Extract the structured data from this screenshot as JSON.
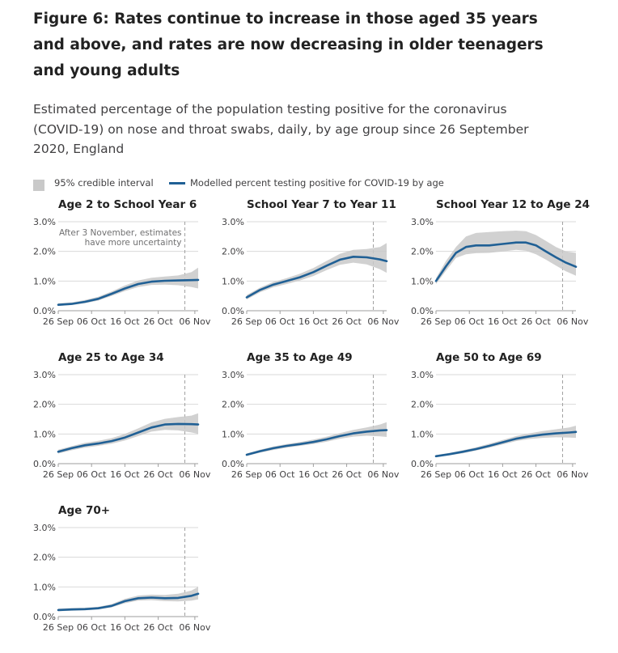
{
  "header": {
    "title": "Figure 6: Rates continue to increase in those aged 35 years and above, and rates are now decreasing in older teenagers and young adults",
    "subtitle": "Estimated percentage of the population testing positive for the coronavirus (COVID-19) on nose and throat swabs, daily, by age group since 26 September 2020, England"
  },
  "legend": {
    "interval_label": "95% credible interval",
    "line_label": "Modelled percent testing positive for COVID-19 by age"
  },
  "colors": {
    "line": "#206095",
    "band": "#c9c9c9",
    "grid": "#d9d9d9",
    "marker": "#a0a0a0"
  },
  "chart_data": [
    {
      "type": "line",
      "title": "Age 2 to School Year 6",
      "xlabel": "",
      "ylabel": "",
      "x_ticks": [
        "26 Sep",
        "06 Oct",
        "16 Oct",
        "26 Oct",
        "06 Nov"
      ],
      "x_tick_days": [
        0,
        10,
        20,
        30,
        41
      ],
      "x_range_days": [
        0,
        42
      ],
      "y_ticks": [
        "0.0%",
        "1.0%",
        "2.0%",
        "3.0%"
      ],
      "ylim": [
        0,
        3
      ],
      "marker_day": 38,
      "annotation": [
        "After 3 November, estimates",
        "have more uncertainty"
      ],
      "series": [
        {
          "x_days": [
            0,
            4,
            8,
            12,
            16,
            20,
            24,
            28,
            32,
            36,
            40,
            42
          ],
          "values": [
            0.2,
            0.23,
            0.3,
            0.4,
            0.57,
            0.75,
            0.9,
            0.98,
            1.01,
            1.02,
            1.03,
            1.04
          ],
          "lower": [
            0.16,
            0.19,
            0.25,
            0.34,
            0.5,
            0.66,
            0.8,
            0.87,
            0.88,
            0.86,
            0.8,
            0.75
          ],
          "upper": [
            0.25,
            0.28,
            0.36,
            0.47,
            0.65,
            0.85,
            1.02,
            1.11,
            1.15,
            1.19,
            1.3,
            1.45
          ]
        }
      ]
    },
    {
      "type": "line",
      "title": "School Year 7 to Year 11",
      "xlabel": "",
      "ylabel": "",
      "x_ticks": [
        "26 Sep",
        "06 Oct",
        "16 Oct",
        "26 Oct",
        "06 Nov"
      ],
      "x_tick_days": [
        0,
        10,
        20,
        30,
        41
      ],
      "x_range_days": [
        0,
        42
      ],
      "y_ticks": [
        "0.0%",
        "1.0%",
        "2.0%",
        "3.0%"
      ],
      "ylim": [
        0,
        3
      ],
      "marker_day": 38,
      "series": [
        {
          "x_days": [
            0,
            4,
            8,
            12,
            16,
            20,
            24,
            28,
            32,
            36,
            40,
            42
          ],
          "values": [
            0.45,
            0.7,
            0.88,
            1.0,
            1.13,
            1.3,
            1.52,
            1.72,
            1.82,
            1.8,
            1.73,
            1.67
          ],
          "lower": [
            0.38,
            0.62,
            0.79,
            0.9,
            1.02,
            1.17,
            1.37,
            1.55,
            1.62,
            1.56,
            1.4,
            1.28
          ],
          "upper": [
            0.53,
            0.78,
            0.97,
            1.1,
            1.25,
            1.44,
            1.68,
            1.92,
            2.05,
            2.08,
            2.15,
            2.28
          ]
        }
      ]
    },
    {
      "type": "line",
      "title": "School Year 12 to Age 24",
      "xlabel": "",
      "ylabel": "",
      "x_ticks": [
        "26 Sep",
        "06 Oct",
        "16 Oct",
        "26 Oct",
        "06 Nov"
      ],
      "x_tick_days": [
        0,
        10,
        20,
        30,
        41
      ],
      "x_range_days": [
        0,
        42
      ],
      "y_ticks": [
        "0.0%",
        "1.0%",
        "2.0%",
        "3.0%"
      ],
      "ylim": [
        0,
        3
      ],
      "marker_day": 38,
      "series": [
        {
          "x_days": [
            0,
            3,
            6,
            9,
            12,
            16,
            20,
            24,
            27,
            30,
            33,
            36,
            39,
            42
          ],
          "values": [
            1.0,
            1.5,
            1.95,
            2.15,
            2.2,
            2.2,
            2.25,
            2.3,
            2.3,
            2.2,
            2.0,
            1.8,
            1.62,
            1.48
          ],
          "lower": [
            0.9,
            1.35,
            1.78,
            1.9,
            1.94,
            1.95,
            2.0,
            2.05,
            2.02,
            1.9,
            1.72,
            1.52,
            1.33,
            1.18
          ],
          "upper": [
            1.1,
            1.68,
            2.15,
            2.5,
            2.62,
            2.65,
            2.68,
            2.7,
            2.68,
            2.55,
            2.35,
            2.15,
            2.0,
            1.95
          ]
        }
      ]
    },
    {
      "type": "line",
      "title": "Age 25 to Age 34",
      "xlabel": "",
      "ylabel": "",
      "x_ticks": [
        "26 Sep",
        "06 Oct",
        "16 Oct",
        "26 Oct",
        "06 Nov"
      ],
      "x_tick_days": [
        0,
        10,
        20,
        30,
        41
      ],
      "x_range_days": [
        0,
        42
      ],
      "y_ticks": [
        "0.0%",
        "1.0%",
        "2.0%",
        "3.0%"
      ],
      "ylim": [
        0,
        3
      ],
      "marker_day": 38,
      "series": [
        {
          "x_days": [
            0,
            4,
            8,
            12,
            16,
            20,
            24,
            28,
            32,
            36,
            40,
            42
          ],
          "values": [
            0.4,
            0.52,
            0.62,
            0.68,
            0.76,
            0.88,
            1.05,
            1.22,
            1.32,
            1.34,
            1.33,
            1.32
          ],
          "lower": [
            0.34,
            0.45,
            0.54,
            0.6,
            0.67,
            0.78,
            0.93,
            1.08,
            1.14,
            1.12,
            1.05,
            1.0
          ],
          "upper": [
            0.47,
            0.59,
            0.7,
            0.77,
            0.86,
            1.0,
            1.19,
            1.39,
            1.51,
            1.57,
            1.62,
            1.7
          ]
        }
      ]
    },
    {
      "type": "line",
      "title": "Age 35 to Age 49",
      "xlabel": "",
      "ylabel": "",
      "x_ticks": [
        "26 Sep",
        "06 Oct",
        "16 Oct",
        "26 Oct",
        "06 Nov"
      ],
      "x_tick_days": [
        0,
        10,
        20,
        30,
        41
      ],
      "x_range_days": [
        0,
        42
      ],
      "y_ticks": [
        "0.0%",
        "1.0%",
        "2.0%",
        "3.0%"
      ],
      "ylim": [
        0,
        3
      ],
      "marker_day": 38,
      "series": [
        {
          "x_days": [
            0,
            4,
            8,
            12,
            16,
            20,
            24,
            28,
            32,
            36,
            40,
            42
          ],
          "values": [
            0.3,
            0.42,
            0.52,
            0.6,
            0.66,
            0.73,
            0.82,
            0.93,
            1.02,
            1.08,
            1.12,
            1.13
          ],
          "lower": [
            0.26,
            0.37,
            0.46,
            0.54,
            0.6,
            0.66,
            0.74,
            0.84,
            0.91,
            0.94,
            0.92,
            0.9
          ],
          "upper": [
            0.34,
            0.47,
            0.58,
            0.66,
            0.73,
            0.81,
            0.91,
            1.03,
            1.14,
            1.22,
            1.32,
            1.4
          ]
        }
      ]
    },
    {
      "type": "line",
      "title": "Age 50 to Age 69",
      "xlabel": "",
      "ylabel": "",
      "x_ticks": [
        "26 Sep",
        "06 Oct",
        "16 Oct",
        "26 Oct",
        "06 Nov"
      ],
      "x_tick_days": [
        0,
        10,
        20,
        30,
        41
      ],
      "x_range_days": [
        0,
        42
      ],
      "y_ticks": [
        "0.0%",
        "1.0%",
        "2.0%",
        "3.0%"
      ],
      "ylim": [
        0,
        3
      ],
      "marker_day": 38,
      "series": [
        {
          "x_days": [
            0,
            4,
            8,
            12,
            16,
            20,
            24,
            28,
            32,
            36,
            40,
            42
          ],
          "values": [
            0.25,
            0.32,
            0.4,
            0.49,
            0.6,
            0.72,
            0.84,
            0.92,
            0.98,
            1.02,
            1.05,
            1.07
          ],
          "lower": [
            0.22,
            0.28,
            0.35,
            0.44,
            0.54,
            0.65,
            0.76,
            0.83,
            0.87,
            0.89,
            0.88,
            0.87
          ],
          "upper": [
            0.29,
            0.36,
            0.45,
            0.55,
            0.67,
            0.8,
            0.93,
            1.02,
            1.1,
            1.16,
            1.22,
            1.28
          ]
        }
      ]
    },
    {
      "type": "line",
      "title": "Age 70+",
      "xlabel": "",
      "ylabel": "",
      "x_ticks": [
        "26 Sep",
        "06 Oct",
        "16 Oct",
        "26 Oct",
        "06 Nov"
      ],
      "x_tick_days": [
        0,
        10,
        20,
        30,
        41
      ],
      "x_range_days": [
        0,
        42
      ],
      "y_ticks": [
        "0.0%",
        "1.0%",
        "2.0%",
        "3.0%"
      ],
      "ylim": [
        0,
        3
      ],
      "marker_day": 38,
      "series": [
        {
          "x_days": [
            0,
            4,
            8,
            12,
            16,
            20,
            24,
            28,
            32,
            36,
            40,
            42
          ],
          "values": [
            0.22,
            0.24,
            0.25,
            0.28,
            0.36,
            0.52,
            0.62,
            0.64,
            0.62,
            0.63,
            0.7,
            0.77
          ],
          "lower": [
            0.18,
            0.2,
            0.21,
            0.24,
            0.31,
            0.45,
            0.54,
            0.55,
            0.52,
            0.51,
            0.54,
            0.58
          ],
          "upper": [
            0.27,
            0.29,
            0.3,
            0.33,
            0.42,
            0.6,
            0.71,
            0.74,
            0.73,
            0.77,
            0.88,
            1.0
          ]
        }
      ]
    }
  ]
}
